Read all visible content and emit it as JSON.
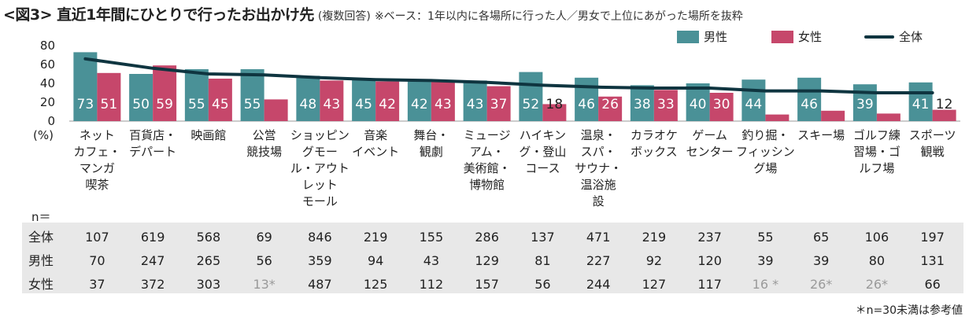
{
  "title": {
    "main": "<図3> 直近1年間にひとりで行ったお出かけ先",
    "sub": "(複数回答)",
    "note": "※ベース：1年以内に各場所に行った人／男女で上位にあがった場所を抜粋"
  },
  "legend": {
    "male": "男性",
    "female": "女性",
    "total": "全体"
  },
  "colors": {
    "male": "#4a9197",
    "female": "#c6476b",
    "total": "#0f3540"
  },
  "chart_data": {
    "type": "bar",
    "ylabel": "(%)",
    "ylim": [
      0,
      80
    ],
    "yticks": [
      0,
      20,
      40,
      60,
      80
    ],
    "grid": false,
    "legend_position": "top-right",
    "categories": [
      [
        "ネット",
        "カフェ・",
        "マンガ",
        "喫茶"
      ],
      [
        "百貨店・",
        "デパート"
      ],
      [
        "映画館"
      ],
      [
        "公営",
        "競技場"
      ],
      [
        "ショッピン",
        "グモー",
        "ル・アウト",
        "レット",
        "モール"
      ],
      [
        "音楽",
        "イベント"
      ],
      [
        "舞台・",
        "観劇"
      ],
      [
        "ミュージ",
        "アム・",
        "美術館・",
        "博物館"
      ],
      [
        "ハイキン",
        "グ・登山",
        "コース"
      ],
      [
        "温泉・",
        "スパ・",
        "サウナ・",
        "温浴施",
        "設"
      ],
      [
        "カラオケ",
        "ボックス"
      ],
      [
        "ゲーム",
        "センター"
      ],
      [
        "釣り掘・",
        "フィッシン",
        "グ場"
      ],
      [
        "スキー場"
      ],
      [
        "ゴルフ練",
        "習場・ゴ",
        "ルフ場"
      ],
      [
        "スポーツ",
        "観戦"
      ]
    ],
    "series": [
      {
        "name": "男性",
        "type": "bar",
        "values": [
          73,
          50,
          55,
          55,
          48,
          45,
          42,
          43,
          52,
          46,
          38,
          40,
          44,
          46,
          39,
          41
        ],
        "labels": [
          "73",
          "50",
          "55",
          "",
          "48",
          "45",
          "42",
          "43",
          "52",
          "46",
          "38",
          "40",
          "44",
          "46",
          "39",
          "41"
        ]
      },
      {
        "name": "女性",
        "type": "bar",
        "values": [
          51,
          59,
          45,
          23,
          43,
          42,
          43,
          37,
          18,
          26,
          33,
          30,
          7,
          11,
          8,
          12
        ],
        "labels": [
          "51",
          "59",
          "45",
          "",
          "43",
          "42",
          "43",
          "37",
          "18",
          "26",
          "33",
          "30",
          "",
          "",
          "",
          "12"
        ]
      },
      {
        "name": "全体",
        "type": "line",
        "values": [
          66,
          56,
          50,
          49,
          46,
          44,
          43,
          41,
          38,
          36,
          35,
          35,
          32,
          32,
          30,
          30
        ]
      }
    ],
    "male_only_labels": [
      "",
      "",
      "",
      "55",
      "",
      "",
      "",
      "",
      "",
      "",
      "",
      "",
      "",
      "",
      "",
      ""
    ]
  },
  "table": {
    "n_label": "n＝",
    "rows": [
      {
        "label": "全体",
        "values": [
          "107",
          "619",
          "568",
          "69",
          "846",
          "219",
          "155",
          "286",
          "137",
          "471",
          "219",
          "237",
          "55",
          "65",
          "106",
          "197"
        ],
        "muted": []
      },
      {
        "label": "男性",
        "values": [
          "70",
          "247",
          "265",
          "56",
          "359",
          "94",
          "43",
          "129",
          "81",
          "227",
          "92",
          "120",
          "39",
          "39",
          "80",
          "131"
        ],
        "muted": []
      },
      {
        "label": "女性",
        "values": [
          "37",
          "372",
          "303",
          "13*",
          "487",
          "125",
          "112",
          "157",
          "56",
          "244",
          "127",
          "117",
          "16 *",
          "26*",
          "26*",
          "66"
        ],
        "muted": [
          3,
          12,
          13,
          14
        ]
      }
    ]
  },
  "footnote": "＊n=30未満は参考値"
}
